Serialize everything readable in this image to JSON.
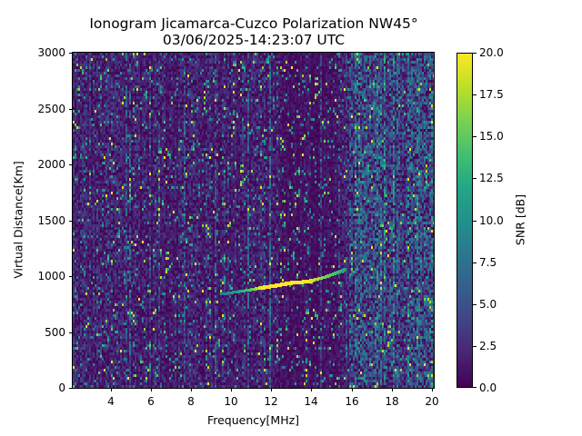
{
  "header": {
    "title_line1": "Ionogram Jicamarca-Cuzco Polarization NW45°",
    "title_line2": "03/06/2025-14:23:07 UTC"
  },
  "colors": {
    "colormap": "viridis",
    "min_color": "#440154",
    "max_color": "#fde725"
  },
  "chart_data": {
    "type": "heatmap",
    "title": "Ionogram Jicamarca-Cuzco Polarization NW45°\n03/06/2025-14:23:07 UTC",
    "xlabel": "Frequency[MHz]",
    "ylabel": "Virtual Distance[Km]",
    "colorbar_label": "SNR [dB]",
    "xlim": [
      2.1,
      20.1
    ],
    "ylim": [
      0,
      3000
    ],
    "clim": [
      0.0,
      20.0
    ],
    "x_ticks": [
      4,
      6,
      8,
      10,
      12,
      14,
      16,
      18,
      20
    ],
    "x_tick_labels": [
      "4",
      "6",
      "8",
      "10",
      "12",
      "14",
      "16",
      "18",
      "20"
    ],
    "y_ticks": [
      0,
      500,
      1000,
      1500,
      2000,
      2500,
      3000
    ],
    "y_tick_labels": [
      "0",
      "500",
      "1000",
      "1500",
      "2000",
      "2500",
      "3000"
    ],
    "colorbar_ticks": [
      0.0,
      2.5,
      5.0,
      7.5,
      10.0,
      12.5,
      15.0,
      17.5,
      20.0
    ],
    "colorbar_tick_labels": [
      "0.0",
      "2.5",
      "5.0",
      "7.5",
      "10.0",
      "12.5",
      "15.0",
      "17.5",
      "20.0"
    ],
    "grid": false,
    "background_snr_db": "mostly 0-5 dB noise with sparse 10-20 dB speckle",
    "trace": {
      "description": "Bright echo trace (~20 dB SNR)",
      "points": [
        {
          "freq_mhz": 9.5,
          "distance_km": 840,
          "snr_db": 8
        },
        {
          "freq_mhz": 11.0,
          "distance_km": 880,
          "snr_db": 15
        },
        {
          "freq_mhz": 11.5,
          "distance_km": 900,
          "snr_db": 20
        },
        {
          "freq_mhz": 12.2,
          "distance_km": 920,
          "snr_db": 20
        },
        {
          "freq_mhz": 13.0,
          "distance_km": 945,
          "snr_db": 20
        },
        {
          "freq_mhz": 13.8,
          "distance_km": 955,
          "snr_db": 20
        },
        {
          "freq_mhz": 14.6,
          "distance_km": 990,
          "snr_db": 16
        },
        {
          "freq_mhz": 15.2,
          "distance_km": 1030,
          "snr_db": 14
        },
        {
          "freq_mhz": 15.6,
          "distance_km": 1060,
          "snr_db": 12
        }
      ]
    },
    "bright_columns_mhz": [
      17.8,
      19.5,
      19.9
    ]
  },
  "axes": {
    "xlabel": "Frequency[MHz]",
    "ylabel": "Virtual Distance[Km]",
    "colorbar_label": "SNR [dB]"
  }
}
